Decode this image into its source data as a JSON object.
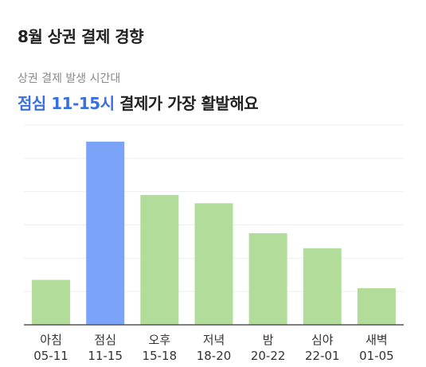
{
  "page_title": "8월 상권 결제 경향",
  "summary": {
    "label": "상권 결제 발생 시간대",
    "headline_highlight": "점심 11-15시",
    "headline_rest": " 결제가 가장 활발해요"
  },
  "colors": {
    "highlight": "#7ba4f8",
    "normal": "#b2dc99",
    "accent_text": "#3a6fe0"
  },
  "chart_data": {
    "type": "bar",
    "categories": [
      {
        "name": "아침",
        "range": "05-11"
      },
      {
        "name": "점심",
        "range": "11-15"
      },
      {
        "name": "오후",
        "range": "15-18"
      },
      {
        "name": "저녁",
        "range": "18-20"
      },
      {
        "name": "밤",
        "range": "20-22"
      },
      {
        "name": "심야",
        "range": "22-01"
      },
      {
        "name": "새벽",
        "range": "01-05"
      }
    ],
    "values": [
      2.7,
      11.0,
      7.8,
      7.3,
      5.5,
      4.6,
      2.2
    ],
    "highlight_index": 1,
    "ylim": [
      0,
      12
    ],
    "grid": true,
    "xlabel": "",
    "ylabel": ""
  }
}
